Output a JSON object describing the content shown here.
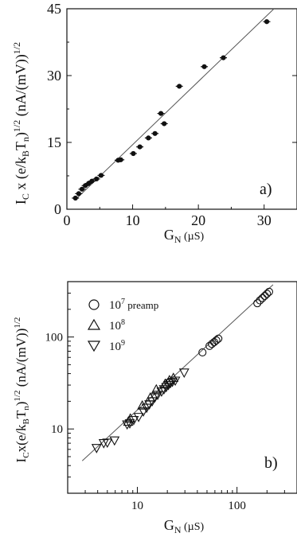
{
  "chart_data": [
    {
      "type": "scatter",
      "panel_label": "a)",
      "xlabel": "G_N (µS)",
      "ylabel": "I_C x (e/k_B T_n)^1/2 (nA/(mV))^1/2",
      "xlim": [
        0,
        35
      ],
      "ylim": [
        0,
        45
      ],
      "x_ticks": [
        0,
        10,
        20,
        30
      ],
      "y_ticks": [
        0,
        15,
        30,
        45
      ],
      "grid": false,
      "fit_line": {
        "x": [
          1.2,
          31.5
        ],
        "y": [
          2.0,
          45.0
        ]
      },
      "series": [
        {
          "marker": "filled-circle",
          "x": [
            1.3,
            1.8,
            2.3,
            2.8,
            3.3,
            3.8,
            4.5,
            5.2,
            7.8,
            8.2,
            10.1,
            11.1,
            12.4,
            13.4,
            14.3,
            14.8,
            17.1,
            20.9,
            23.8,
            30.4
          ],
          "y": [
            2.5,
            3.5,
            4.5,
            5.3,
            5.8,
            6.3,
            6.8,
            7.6,
            11.0,
            11.1,
            12.5,
            14.0,
            16.0,
            17.0,
            21.5,
            19.2,
            27.6,
            32.0,
            34.0,
            42.1
          ]
        }
      ]
    },
    {
      "type": "scatter",
      "panel_label": "b)",
      "xlabel": "G_N (µS)",
      "ylabel": "I_C x (e/k_B T_n)^1/2 (nA/(mV))^1/2",
      "xscale": "log",
      "yscale": "log",
      "xlim": [
        2,
        400
      ],
      "ylim": [
        2,
        400
      ],
      "x_ticks": [
        10,
        100
      ],
      "y_ticks": [
        10,
        100
      ],
      "grid": false,
      "legend_position": "top-left",
      "fit_line": {
        "x": [
          2.8,
          230
        ],
        "y": [
          4.5,
          370
        ]
      },
      "series": [
        {
          "name": "10^7 preamp",
          "marker": "circle",
          "x": [
            45,
            53,
            56,
            59,
            62,
            65,
            160,
            170,
            180,
            190,
            200,
            210
          ],
          "y": [
            68,
            80,
            84,
            88,
            92,
            96,
            233,
            250,
            265,
            280,
            295,
            310
          ]
        },
        {
          "name": "10^8",
          "marker": "triangle-up",
          "x": [
            8.1,
            8.5,
            11.2,
            13.5,
            15.5,
            19.0,
            21.0,
            23.0
          ],
          "y": [
            12.0,
            13.0,
            18.0,
            22.0,
            27.0,
            31.0,
            34.0,
            36.0
          ]
        },
        {
          "name": "10^9",
          "marker": "triangle-down",
          "x": [
            3.9,
            4.6,
            5.0,
            5.9,
            7.9,
            8.4,
            9.2,
            10.3,
            11.5,
            12.4,
            13.2,
            14.1,
            15.0,
            16.0,
            17.5,
            18.5,
            19.5,
            20.5,
            21.5,
            22.5,
            24.0,
            29.5
          ],
          "y": [
            6.2,
            7.0,
            7.1,
            7.5,
            11.2,
            11.5,
            12.5,
            13.5,
            15.5,
            17.0,
            18.5,
            20.0,
            22.0,
            23.5,
            25.5,
            27.0,
            28.5,
            30.0,
            31.5,
            32.5,
            33.5,
            41.0
          ]
        }
      ]
    }
  ]
}
